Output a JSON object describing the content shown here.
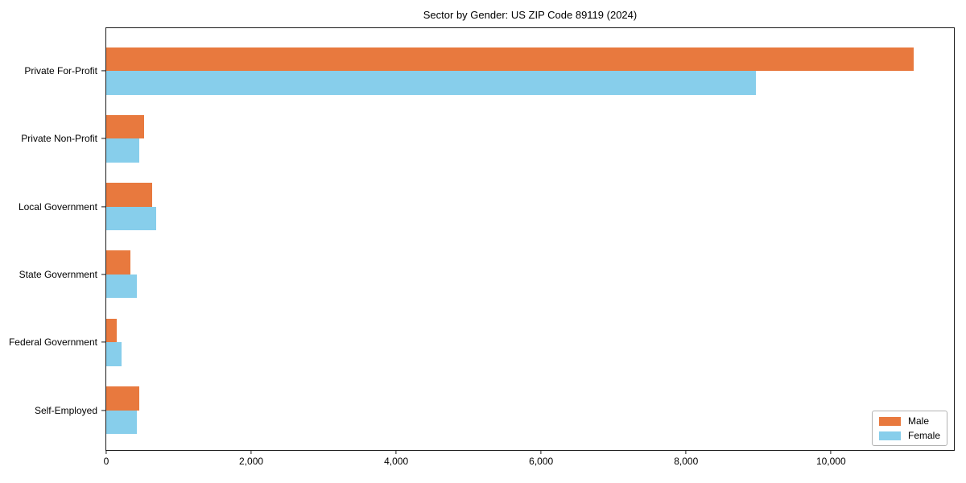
{
  "title": "Sector by Gender: US ZIP Code 89119 (2024)",
  "chart_data": {
    "type": "bar",
    "orientation": "horizontal",
    "title": "Sector by Gender: US ZIP Code 89119 (2024)",
    "categories": [
      "Private For-Profit",
      "Private Non-Profit",
      "Local Government",
      "State Government",
      "Federal Government",
      "Self-Employed"
    ],
    "series": [
      {
        "name": "Male",
        "color": "#E8793E",
        "values": [
          11140,
          525,
          635,
          330,
          145,
          460
        ]
      },
      {
        "name": "Female",
        "color": "#87CEEB",
        "values": [
          8960,
          450,
          690,
          425,
          215,
          420
        ]
      }
    ],
    "xlabel": "",
    "ylabel": "",
    "xlim": [
      0,
      11696
    ],
    "xticks": [
      0,
      2000,
      4000,
      6000,
      8000,
      10000
    ],
    "xtick_labels": [
      "0",
      "2,000",
      "4,000",
      "6,000",
      "8,000",
      "10,000"
    ],
    "grid": false,
    "legend": {
      "position": "lower right",
      "entries": [
        "Male",
        "Female"
      ]
    }
  }
}
